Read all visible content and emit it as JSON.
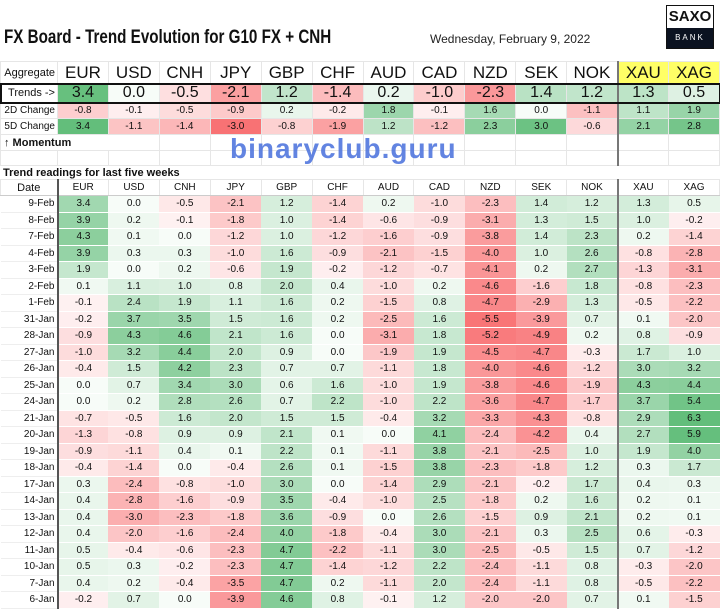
{
  "title": "FX Board - Trend Evolution for G10 FX + CNH",
  "date": "Wednesday, February 9, 2022",
  "logo": {
    "top": "SAXO",
    "bottom": "BANK"
  },
  "watermark": "binaryclub.guru",
  "aggregate_label": "Aggregate",
  "currencies": [
    "EUR",
    "USD",
    "CNH",
    "JPY",
    "GBP",
    "CHF",
    "AUD",
    "CAD",
    "NZD",
    "SEK",
    "NOK",
    "XAU",
    "XAG"
  ],
  "trends": {
    "label": "Trends ->",
    "values": [
      "3.4",
      "0.0",
      "-0.5",
      "-2.1",
      "1.2",
      "-1.4",
      "0.2",
      "-1.0",
      "-2.3",
      "1.4",
      "1.2",
      "1.3",
      "0.5"
    ]
  },
  "change_2d": {
    "label": "2D Change",
    "values": [
      "-0.8",
      "-0.1",
      "-0.5",
      "-0.9",
      "0.2",
      "-0.2",
      "1.8",
      "-0.1",
      "1.6",
      "0.0",
      "-1.1",
      "1.1",
      "1.9"
    ]
  },
  "change_5d": {
    "label": "5D Change",
    "values": [
      "3.4",
      "-1.1",
      "-1.4",
      "-3.0",
      "-0.8",
      "-1.9",
      "1.2",
      "-1.2",
      "2.3",
      "3.0",
      "-0.6",
      "2.1",
      "2.8"
    ]
  },
  "momentum_label": "↑ Momentum",
  "readings_title": "Trend readings for last five weeks",
  "date_header": "Date",
  "rows": [
    {
      "date": "9-Feb",
      "v": [
        "3.4",
        "0.0",
        "-0.5",
        "-2.1",
        "1.2",
        "-1.4",
        "0.2",
        "-1.0",
        "-2.3",
        "1.4",
        "1.2",
        "1.3",
        "0.5"
      ]
    },
    {
      "date": "8-Feb",
      "v": [
        "3.9",
        "0.2",
        "-0.1",
        "-1.8",
        "1.0",
        "-1.4",
        "-0.6",
        "-0.9",
        "-3.1",
        "1.3",
        "1.5",
        "1.0",
        "-0.2"
      ]
    },
    {
      "date": "7-Feb",
      "v": [
        "4.3",
        "0.1",
        "0.0",
        "-1.2",
        "1.0",
        "-1.2",
        "-1.6",
        "-0.9",
        "-3.8",
        "1.4",
        "2.3",
        "0.2",
        "-1.4"
      ]
    },
    {
      "date": "4-Feb",
      "v": [
        "3.9",
        "0.3",
        "0.3",
        "-1.0",
        "1.6",
        "-0.9",
        "-2.1",
        "-1.5",
        "-4.0",
        "1.0",
        "2.6",
        "-0.8",
        "-2.8"
      ]
    },
    {
      "date": "3-Feb",
      "v": [
        "1.9",
        "0.0",
        "0.2",
        "-0.6",
        "1.9",
        "-0.2",
        "-1.2",
        "-0.7",
        "-4.1",
        "0.2",
        "2.7",
        "-1.3",
        "-3.1"
      ]
    },
    {
      "date": "2-Feb",
      "v": [
        "0.1",
        "1.1",
        "1.0",
        "0.8",
        "2.0",
        "0.4",
        "-1.0",
        "0.2",
        "-4.6",
        "-1.6",
        "1.8",
        "-0.8",
        "-2.3"
      ]
    },
    {
      "date": "1-Feb",
      "v": [
        "-0.1",
        "2.4",
        "1.9",
        "1.1",
        "1.6",
        "0.2",
        "-1.5",
        "0.8",
        "-4.7",
        "-2.9",
        "1.3",
        "-0.5",
        "-2.2"
      ]
    },
    {
      "date": "31-Jan",
      "v": [
        "-0.2",
        "3.7",
        "3.5",
        "1.5",
        "1.6",
        "0.2",
        "-2.5",
        "1.6",
        "-5.5",
        "-3.9",
        "0.7",
        "0.1",
        "-2.0"
      ]
    },
    {
      "date": "28-Jan",
      "v": [
        "-0.9",
        "4.3",
        "4.6",
        "2.1",
        "1.6",
        "0.0",
        "-3.1",
        "1.8",
        "-5.2",
        "-4.9",
        "0.2",
        "0.8",
        "-0.9"
      ]
    },
    {
      "date": "27-Jan",
      "v": [
        "-1.0",
        "3.2",
        "4.4",
        "2.0",
        "0.9",
        "0.0",
        "-1.9",
        "1.9",
        "-4.5",
        "-4.7",
        "-0.3",
        "1.7",
        "1.0"
      ]
    },
    {
      "date": "26-Jan",
      "v": [
        "-0.4",
        "1.5",
        "4.2",
        "2.3",
        "0.7",
        "0.7",
        "-1.1",
        "1.8",
        "-4.0",
        "-4.6",
        "-1.2",
        "3.0",
        "3.2"
      ]
    },
    {
      "date": "25-Jan",
      "v": [
        "0.0",
        "0.7",
        "3.4",
        "3.0",
        "0.6",
        "1.6",
        "-1.0",
        "1.9",
        "-3.8",
        "-4.6",
        "-1.9",
        "4.3",
        "4.4"
      ]
    },
    {
      "date": "24-Jan",
      "v": [
        "0.0",
        "0.2",
        "2.8",
        "2.6",
        "0.7",
        "2.2",
        "-1.0",
        "2.2",
        "-3.6",
        "-4.7",
        "-1.7",
        "3.7",
        "5.4"
      ]
    },
    {
      "date": "21-Jan",
      "v": [
        "-0.7",
        "-0.5",
        "1.6",
        "2.0",
        "1.5",
        "1.5",
        "-0.4",
        "3.2",
        "-3.3",
        "-4.3",
        "-0.8",
        "2.9",
        "6.3"
      ]
    },
    {
      "date": "20-Jan",
      "v": [
        "-1.3",
        "-0.8",
        "0.9",
        "0.9",
        "2.1",
        "0.1",
        "0.0",
        "4.1",
        "-2.4",
        "-4.2",
        "0.4",
        "2.7",
        "5.9"
      ]
    },
    {
      "date": "19-Jan",
      "v": [
        "-0.9",
        "-1.1",
        "0.4",
        "0.1",
        "2.2",
        "0.1",
        "-1.1",
        "3.8",
        "-2.1",
        "-2.5",
        "1.0",
        "1.9",
        "4.0"
      ]
    },
    {
      "date": "18-Jan",
      "v": [
        "-0.4",
        "-1.4",
        "0.0",
        "-0.4",
        "2.6",
        "0.1",
        "-1.5",
        "3.8",
        "-2.3",
        "-1.8",
        "1.2",
        "0.3",
        "1.7"
      ]
    },
    {
      "date": "17-Jan",
      "v": [
        "0.3",
        "-2.4",
        "-0.8",
        "-1.0",
        "3.0",
        "0.0",
        "-1.4",
        "2.9",
        "-2.1",
        "-0.2",
        "1.7",
        "0.4",
        "0.3"
      ]
    },
    {
      "date": "14-Jan",
      "v": [
        "0.4",
        "-2.8",
        "-1.6",
        "-0.9",
        "3.5",
        "-0.4",
        "-1.0",
        "2.5",
        "-1.8",
        "0.2",
        "1.6",
        "0.2",
        "0.1"
      ]
    },
    {
      "date": "13-Jan",
      "v": [
        "0.4",
        "-3.0",
        "-2.3",
        "-1.8",
        "3.6",
        "-0.9",
        "0.0",
        "2.6",
        "-1.5",
        "0.9",
        "2.1",
        "0.2",
        "0.1"
      ]
    },
    {
      "date": "12-Jan",
      "v": [
        "0.4",
        "-2.0",
        "-1.6",
        "-2.4",
        "4.0",
        "-1.8",
        "-0.4",
        "3.0",
        "-2.1",
        "0.3",
        "2.5",
        "0.6",
        "-0.3"
      ]
    },
    {
      "date": "11-Jan",
      "v": [
        "0.5",
        "-0.4",
        "-0.6",
        "-2.3",
        "4.7",
        "-2.2",
        "-1.1",
        "3.0",
        "-2.5",
        "-0.5",
        "1.5",
        "0.7",
        "-1.2"
      ]
    },
    {
      "date": "10-Jan",
      "v": [
        "0.5",
        "0.3",
        "-0.2",
        "-2.3",
        "4.7",
        "-1.4",
        "-1.2",
        "2.2",
        "-2.4",
        "-1.1",
        "0.8",
        "-0.3",
        "-2.0"
      ]
    },
    {
      "date": "7-Jan",
      "v": [
        "0.4",
        "0.2",
        "-0.4",
        "-3.5",
        "4.7",
        "0.2",
        "-1.1",
        "2.0",
        "-2.4",
        "-1.1",
        "0.8",
        "-0.5",
        "-2.2"
      ]
    },
    {
      "date": "6-Jan",
      "v": [
        "-0.2",
        "0.7",
        "0.0",
        "-3.9",
        "4.6",
        "0.8",
        "-0.1",
        "1.2",
        "-2.0",
        "-2.0",
        "0.7",
        "0.1",
        "-1.5"
      ]
    }
  ],
  "colors": {
    "positive": "#63be7b",
    "negative": "#f8696b",
    "neutral": "#ffffff",
    "metals_header": "#ffff66"
  }
}
